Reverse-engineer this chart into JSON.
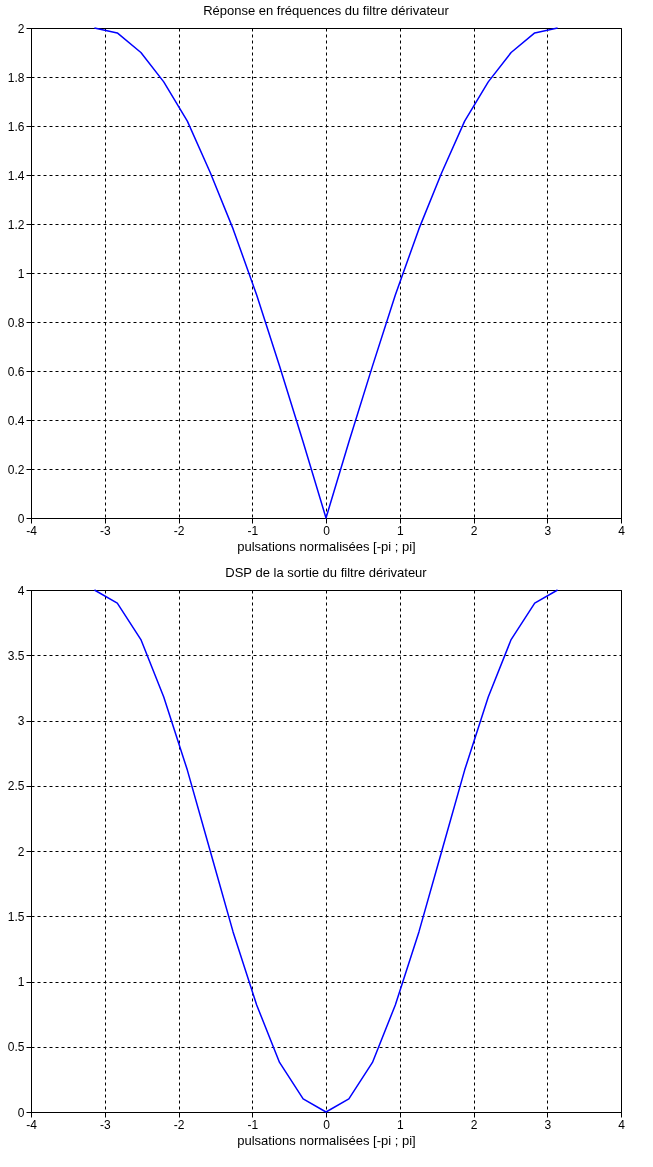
{
  "chart_data": [
    {
      "type": "line",
      "title": "Réponse en fréquences du filtre dérivateur",
      "xlabel": "pulsations normalisées [-pi ; pi]",
      "x": [
        -3.14,
        -2.83,
        -2.51,
        -2.2,
        -1.88,
        -1.57,
        -1.26,
        -0.94,
        -0.63,
        -0.31,
        0,
        0.31,
        0.63,
        0.94,
        1.26,
        1.57,
        1.88,
        2.2,
        2.51,
        2.83,
        3.14
      ],
      "series": [
        {
          "color": "#0000ff",
          "values": [
            2,
            1.98,
            1.9,
            1.78,
            1.62,
            1.41,
            1.18,
            0.91,
            0.62,
            0.31,
            0,
            0.31,
            0.62,
            0.91,
            1.18,
            1.41,
            1.62,
            1.78,
            1.9,
            1.98,
            2
          ]
        }
      ],
      "xlim": [
        -4,
        4
      ],
      "xticks": [
        -4,
        -3,
        -2,
        -1,
        0,
        1,
        2,
        3,
        4
      ],
      "ylim": [
        0,
        2
      ],
      "yticks": [
        0,
        0.2,
        0.4,
        0.6,
        0.8,
        1,
        1.2,
        1.4,
        1.6,
        1.8,
        2
      ],
      "grid": true
    },
    {
      "type": "line",
      "title": "DSP de la sortie du filtre dérivateur",
      "xlabel": "pulsations normalisées [-pi ; pi]",
      "x": [
        -3.14,
        -2.83,
        -2.51,
        -2.2,
        -1.88,
        -1.57,
        -1.26,
        -0.94,
        -0.63,
        -0.31,
        0,
        0.31,
        0.63,
        0.94,
        1.26,
        1.57,
        1.88,
        2.2,
        2.51,
        2.83,
        3.14
      ],
      "series": [
        {
          "color": "#0000ff",
          "values": [
            4,
            3.9,
            3.62,
            3.18,
            2.62,
            2,
            1.38,
            0.82,
            0.38,
            0.1,
            0,
            0.1,
            0.38,
            0.82,
            1.38,
            2,
            2.62,
            3.18,
            3.62,
            3.9,
            4
          ]
        }
      ],
      "xlim": [
        -4,
        4
      ],
      "xticks": [
        -4,
        -3,
        -2,
        -1,
        0,
        1,
        2,
        3,
        4
      ],
      "ylim": [
        0,
        4
      ],
      "yticks": [
        0,
        0.5,
        1,
        1.5,
        2,
        2.5,
        3,
        3.5,
        4
      ],
      "grid": true
    }
  ]
}
